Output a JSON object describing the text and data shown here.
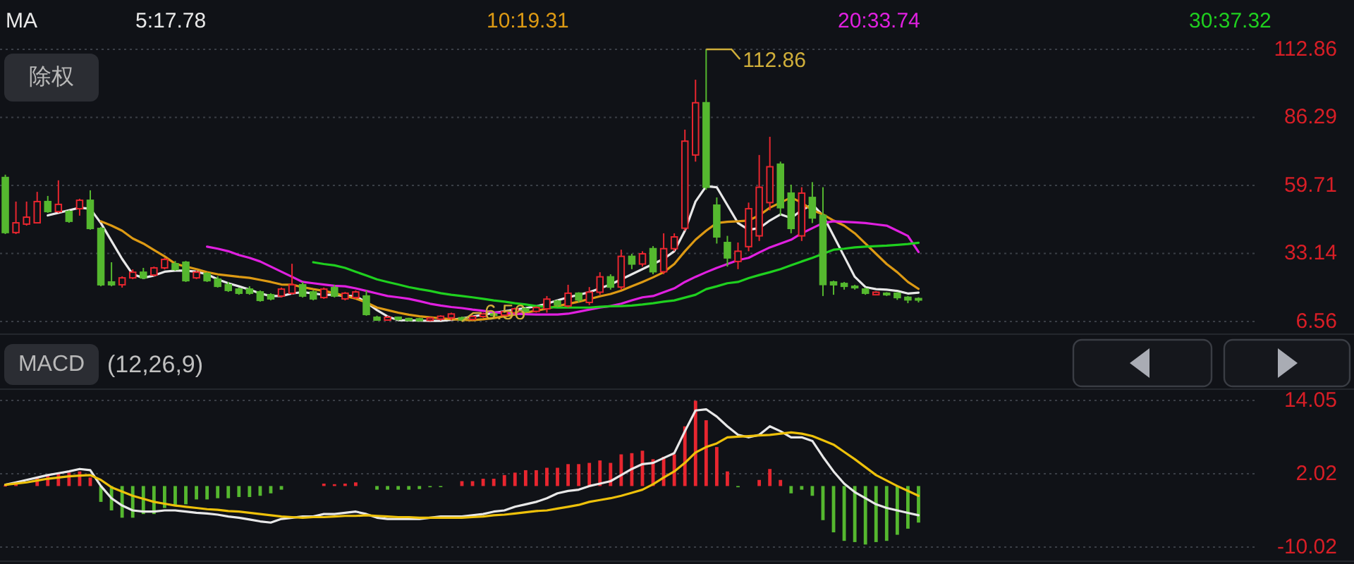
{
  "chart_data": [
    {
      "type": "candlestick",
      "legend": "top",
      "legend_title": "MA",
      "grid": "y",
      "categories": [
        null,
        null,
        null,
        null,
        null,
        null,
        null,
        null,
        null,
        null,
        null,
        null,
        null,
        null,
        null,
        null,
        null,
        null,
        null,
        null,
        null,
        null,
        null,
        null,
        null,
        null,
        null,
        null,
        null,
        null,
        null,
        null,
        null,
        null,
        null,
        null,
        null,
        null,
        null,
        null,
        null,
        null,
        null,
        null,
        null,
        null,
        null,
        null,
        null,
        null,
        null,
        null,
        null,
        null,
        null,
        null,
        null,
        null,
        null,
        null,
        null,
        null,
        null,
        null,
        null,
        null,
        null,
        null,
        null,
        null,
        null,
        null,
        null,
        null,
        null,
        null,
        null,
        null,
        null,
        null,
        null,
        null,
        null,
        null,
        null,
        null,
        null
      ],
      "ohlc": [
        [
          62.8,
          63.9,
          40.7,
          41.3
        ],
        [
          41.3,
          53.4,
          40.7,
          45.1
        ],
        [
          44.6,
          53.4,
          44,
          47.3
        ],
        [
          45.1,
          57.2,
          45.1,
          53.4
        ],
        [
          53.4,
          55.6,
          49,
          49.5
        ],
        [
          49.5,
          61.7,
          49,
          52.3
        ],
        [
          49.5,
          50,
          45.1,
          45.7
        ],
        [
          50.6,
          54.5,
          47.9,
          53.9
        ],
        [
          53.9,
          57.8,
          42.4,
          42.9
        ],
        [
          42.9,
          43.5,
          20.3,
          20.9
        ],
        [
          22,
          29.7,
          20.3,
          20.9
        ],
        [
          20.9,
          24.2,
          19.8,
          23.6
        ],
        [
          23.6,
          26.9,
          23.1,
          25.8
        ],
        [
          25.8,
          27.5,
          23.1,
          23.6
        ],
        [
          24.7,
          28,
          24.2,
          27.5
        ],
        [
          27.5,
          31.4,
          26.9,
          30.8
        ],
        [
          29.1,
          30.2,
          26.4,
          26.9
        ],
        [
          29.7,
          30.2,
          22,
          22.5
        ],
        [
          23.6,
          26.4,
          23.1,
          25.8
        ],
        [
          25.3,
          25.8,
          22,
          22.5
        ],
        [
          23.1,
          24.2,
          19.8,
          20.3
        ],
        [
          20.9,
          22,
          18.1,
          18.7
        ],
        [
          19.2,
          19.8,
          17,
          17.6
        ],
        [
          19.2,
          20.3,
          17,
          17.6
        ],
        [
          18.1,
          18.7,
          14.3,
          14.8
        ],
        [
          17,
          17.6,
          14.8,
          15.4
        ],
        [
          16.5,
          19.8,
          15.9,
          19.2
        ],
        [
          17.6,
          29.1,
          17,
          20.9
        ],
        [
          20.9,
          22,
          15.9,
          16.5
        ],
        [
          18.1,
          18.7,
          14.8,
          15.4
        ],
        [
          15.9,
          19.8,
          15.4,
          19.2
        ],
        [
          19.8,
          20.9,
          15.9,
          16.5
        ],
        [
          15.4,
          18.1,
          14.8,
          17.6
        ],
        [
          15.9,
          18.7,
          15.4,
          18.1
        ],
        [
          16.5,
          18.7,
          8.8,
          9.3
        ],
        [
          8.2,
          8.8,
          7,
          7.1
        ],
        [
          7.1,
          8.8,
          6.9,
          8.2
        ],
        [
          8.2,
          8.5,
          6.9,
          7.4
        ],
        [
          7.7,
          8,
          6.7,
          7
        ],
        [
          7.6,
          8,
          6.7,
          6.9
        ],
        [
          7,
          8.3,
          6.6,
          7.9
        ],
        [
          7.5,
          9,
          6.9,
          8.6
        ],
        [
          8,
          10,
          7,
          9.5
        ],
        [
          8,
          8.5,
          6.56,
          7.2
        ],
        [
          7.4,
          9,
          7,
          8.5
        ],
        [
          8.5,
          10,
          8,
          9.5
        ],
        [
          9.5,
          10,
          8.5,
          9
        ],
        [
          9,
          11,
          8.5,
          10.4
        ],
        [
          10,
          12,
          9.5,
          11.5
        ],
        [
          11.5,
          12,
          10,
          10.5
        ],
        [
          10.5,
          12.5,
          10,
          12
        ],
        [
          11.5,
          16.5,
          10,
          15.3
        ],
        [
          14.5,
          15,
          12,
          13
        ],
        [
          12.6,
          20.9,
          12,
          17.6
        ],
        [
          17.6,
          18,
          14,
          15
        ],
        [
          14,
          20,
          13,
          18
        ],
        [
          18,
          25.8,
          17,
          24
        ],
        [
          24,
          25,
          19,
          20
        ],
        [
          20,
          34.6,
          19,
          32
        ],
        [
          32,
          33,
          27,
          29
        ],
        [
          29,
          34,
          28,
          33
        ],
        [
          35,
          36,
          25,
          26
        ],
        [
          26,
          41,
          25,
          35
        ],
        [
          35,
          41,
          34,
          39.6
        ],
        [
          43,
          81.5,
          42,
          77
        ],
        [
          71.6,
          101,
          69,
          92
        ],
        [
          92,
          112.86,
          58,
          59
        ],
        [
          52,
          55,
          37,
          39.6
        ],
        [
          37.4,
          40,
          28,
          31.4
        ],
        [
          30,
          37.4,
          27,
          34
        ],
        [
          35.8,
          53,
          34,
          50.6
        ],
        [
          40,
          71.6,
          38,
          59
        ],
        [
          53,
          78.7,
          50,
          67
        ],
        [
          68,
          69,
          48,
          51
        ],
        [
          56.7,
          60,
          41,
          42.9
        ],
        [
          40,
          59,
          38,
          56.7
        ],
        [
          55,
          61,
          45,
          47
        ],
        [
          48,
          59,
          16.5,
          21
        ],
        [
          22,
          22.5,
          17,
          20.9
        ],
        [
          21.4,
          22,
          19,
          20.3
        ],
        [
          20.3,
          20.9,
          19,
          19.8
        ],
        [
          19.2,
          19.8,
          17,
          17.6
        ],
        [
          17,
          18.4,
          16.8,
          18
        ],
        [
          17.6,
          18,
          16.5,
          17
        ],
        [
          17.6,
          18,
          15,
          15.9
        ],
        [
          16,
          16.5,
          13.7,
          15
        ],
        [
          15.5,
          16,
          14,
          15
        ]
      ],
      "colors": [
        "#55b82f",
        "#e8262f",
        "#e8262f",
        "#e8262f",
        "#55b82f",
        "#e8262f",
        "#55b82f",
        "#e8262f",
        "#55b82f",
        "#55b82f",
        "#55b82f",
        "#e8262f",
        "#e8262f",
        "#55b82f",
        "#e8262f",
        "#e8262f",
        "#55b82f",
        "#55b82f",
        "#e8262f",
        "#55b82f",
        "#55b82f",
        "#55b82f",
        "#55b82f",
        "#55b82f",
        "#55b82f",
        "#55b82f",
        "#e8262f",
        "#e8262f",
        "#55b82f",
        "#55b82f",
        "#e8262f",
        "#55b82f",
        "#e8262f",
        "#e8262f",
        "#55b82f",
        "#55b82f",
        "#e8262f",
        "#55b82f",
        "#55b82f",
        "#55b82f",
        "#e8262f",
        "#e8262f",
        "#e8262f",
        "#55b82f",
        "#e8262f",
        "#e8262f",
        "#55b82f",
        "#e8262f",
        "#e8262f",
        "#55b82f",
        "#e8262f",
        "#e8262f",
        "#55b82f",
        "#e8262f",
        "#55b82f",
        "#e8262f",
        "#e8262f",
        "#55b82f",
        "#e8262f",
        "#55b82f",
        "#e8262f",
        "#55b82f",
        "#e8262f",
        "#e8262f",
        "#e8262f",
        "#e8262f",
        "#55b82f",
        "#55b82f",
        "#55b82f",
        "#e8262f",
        "#e8262f",
        "#e8262f",
        "#e8262f",
        "#55b82f",
        "#55b82f",
        "#e8262f",
        "#55b82f",
        "#55b82f",
        "#55b82f",
        "#55b82f",
        "#55b82f",
        "#55b82f",
        "#e8262f",
        "#55b82f",
        "#55b82f",
        "#55b82f",
        "#55b82f"
      ],
      "series": [
        {
          "name": "5:17.78",
          "type": "line",
          "color": "#e8e8e8",
          "values": [
            null,
            null,
            null,
            null,
            48,
            49,
            50,
            51,
            50.6,
            45,
            38,
            31,
            25,
            23.6,
            24.5,
            26,
            26.4,
            26.4,
            26,
            25,
            23,
            21.5,
            20.3,
            19,
            17.5,
            16.5,
            16.5,
            17.5,
            18,
            17.5,
            17,
            17,
            16.5,
            16.5,
            14,
            11,
            8.5,
            7.1,
            7,
            6.9,
            6.8,
            6.8,
            7.2,
            7.8,
            8.5,
            9.2,
            9.9,
            10.5,
            11.2,
            11.8,
            12.5,
            13.5,
            14.8,
            16,
            17,
            18,
            19.5,
            21,
            23,
            25,
            27,
            29,
            31,
            34,
            42,
            53.4,
            59.4,
            59,
            52,
            45,
            42.4,
            43,
            46,
            48.4,
            47,
            50,
            52.3,
            48,
            40,
            32,
            24,
            20,
            19.2,
            19,
            18.5,
            17.5,
            17.8
          ]
        },
        {
          "name": "10:19.31",
          "type": "line",
          "color": "#dd9a14",
          "values": [
            null,
            null,
            null,
            null,
            null,
            null,
            null,
            null,
            null,
            45.7,
            44,
            42,
            39,
            37,
            34.5,
            32,
            29.1,
            28,
            27,
            25.8,
            25,
            24.5,
            24,
            23.6,
            22.8,
            22,
            21,
            20.9,
            20,
            19.2,
            18.5,
            17.6,
            16.5,
            15.5,
            14,
            12,
            11,
            10,
            9.2,
            8.6,
            8.2,
            7.8,
            7.5,
            7.2,
            7.1,
            7.4,
            7.9,
            8.6,
            9.3,
            10,
            10.8,
            11.6,
            12.6,
            13.4,
            14.3,
            15.3,
            16.4,
            17.3,
            18.6,
            20.3,
            22,
            23.8,
            25.8,
            29,
            34,
            38.5,
            42,
            45,
            45.5,
            45.7,
            46,
            48,
            51,
            53,
            55,
            53,
            50,
            48.4,
            46,
            44,
            41,
            37,
            33,
            29,
            25.8,
            22,
            19.3
          ]
        },
        {
          "name": "20:33.74",
          "type": "line",
          "color": "#e020e0",
          "values": [
            null,
            null,
            null,
            null,
            null,
            null,
            null,
            null,
            null,
            null,
            null,
            null,
            null,
            null,
            null,
            null,
            null,
            null,
            null,
            35.8,
            35,
            34,
            32.5,
            31.4,
            30,
            28,
            26,
            24,
            22,
            21.5,
            21,
            20.5,
            20.3,
            19.5,
            18.5,
            17.5,
            16.5,
            16,
            15.4,
            14.5,
            13.5,
            12.8,
            12.2,
            11.8,
            11.2,
            10.7,
            10.2,
            9.9,
            9.6,
            9.4,
            9.3,
            9.3,
            9.3,
            9.6,
            10.4,
            11.2,
            12,
            12.6,
            13.5,
            14.8,
            16,
            16.5,
            18,
            19.5,
            22,
            24,
            25.8,
            27.5,
            29,
            30.5,
            31.4,
            33.5,
            35.5,
            37,
            38.5,
            41,
            43,
            45,
            45.7,
            45.5,
            45.3,
            45,
            44.5,
            44,
            42,
            40,
            33.7
          ]
        },
        {
          "name": "30:37.32",
          "type": "line",
          "color": "#1fd01f",
          "values": [
            null,
            null,
            null,
            null,
            null,
            null,
            null,
            null,
            null,
            null,
            null,
            null,
            null,
            null,
            null,
            null,
            null,
            null,
            null,
            null,
            null,
            null,
            null,
            null,
            null,
            null,
            null,
            null,
            null,
            29.7,
            29,
            28.5,
            27.5,
            26,
            24.5,
            23,
            22,
            21,
            20,
            19.2,
            18.5,
            17.6,
            17,
            16.5,
            16,
            15.4,
            14.8,
            14.3,
            13.7,
            13.2,
            12.6,
            12.2,
            12,
            12,
            12,
            12,
            12.3,
            12.5,
            12.6,
            12.8,
            13.2,
            13.7,
            14.3,
            14.8,
            15.9,
            17,
            19.2,
            20.3,
            21.5,
            22,
            23.5,
            24.7,
            25.8,
            27,
            28.5,
            30,
            31.4,
            33,
            34.6,
            35,
            35.5,
            35.8,
            36,
            36.2,
            36.5,
            36.8,
            37.3
          ]
        }
      ],
      "ylim": [
        6.56,
        112.86
      ],
      "yticks": [
        112.86,
        86.29,
        59.71,
        33.14,
        6.56
      ],
      "annotations": [
        "除权",
        "112.86",
        "6.56"
      ]
    },
    {
      "type": "bar",
      "title": "MACD",
      "subtitle": "(12,26,9)",
      "grid": "y",
      "categories": [
        null,
        null,
        null,
        null,
        null,
        null,
        null,
        null,
        null,
        null,
        null,
        null,
        null,
        null,
        null,
        null,
        null,
        null,
        null,
        null,
        null,
        null,
        null,
        null,
        null,
        null,
        null,
        null,
        null,
        null,
        null,
        null,
        null,
        null,
        null,
        null,
        null,
        null,
        null,
        null,
        null,
        null,
        null,
        null,
        null,
        null,
        null,
        null,
        null,
        null,
        null,
        null,
        null,
        null,
        null,
        null,
        null,
        null,
        null,
        null,
        null,
        null,
        null,
        null,
        null,
        null,
        null,
        null,
        null,
        null,
        null,
        null,
        null,
        null,
        null,
        null,
        null,
        null,
        null,
        null,
        null,
        null,
        null,
        null,
        null,
        null,
        null
      ],
      "series": [
        {
          "type": "bar",
          "values": [
            0.1,
            0.3,
            null,
            1.4,
            1.8,
            2.0,
            2.2,
            2.4,
            1.4,
            -2.6,
            -4,
            -5.2,
            -5.2,
            -4.6,
            -4.6,
            -3.6,
            -3.2,
            -3,
            -2.2,
            -2.2,
            -2,
            -2,
            -1.8,
            -1.8,
            -1.6,
            -1.2,
            -0.6,
            null,
            null,
            null,
            0.4,
            0.3,
            0.4,
            0.6,
            null,
            -0.6,
            -0.6,
            -0.6,
            -0.6,
            -0.5,
            -0.2,
            -0.1,
            null,
            0.8,
            0.8,
            1.2,
            1.2,
            1.8,
            2.2,
            2.6,
            2.6,
            3.0,
            3.0,
            3.6,
            3.6,
            3.8,
            4.2,
            3.8,
            5.2,
            5.4,
            5.8,
            4.4,
            4.8,
            5.2,
            9.8,
            14,
            10.8,
            6.4,
            2.4,
            -0.2,
            null,
            1.0,
            2.8,
            1.0,
            -1.2,
            -0.6,
            -1.6,
            -5.6,
            -7.6,
            -9,
            -9.2,
            -9.6,
            -9.2,
            -9,
            -8,
            -7,
            -6
          ],
          "colors": [
            "#e8262f",
            "#e8262f",
            null,
            "#e8262f",
            "#e8262f",
            "#e8262f",
            "#e8262f",
            "#e8262f",
            "#e8262f",
            "#55b82f",
            "#55b82f",
            "#55b82f",
            "#55b82f",
            "#55b82f",
            "#55b82f",
            "#55b82f",
            "#55b82f",
            "#55b82f",
            "#55b82f",
            "#55b82f",
            "#55b82f",
            "#55b82f",
            "#55b82f",
            "#55b82f",
            "#55b82f",
            "#55b82f",
            "#55b82f",
            null,
            null,
            null,
            "#e8262f",
            "#e8262f",
            "#e8262f",
            "#e8262f",
            null,
            "#55b82f",
            "#55b82f",
            "#55b82f",
            "#55b82f",
            "#55b82f",
            "#55b82f",
            "#55b82f",
            null,
            "#e8262f",
            "#e8262f",
            "#e8262f",
            "#e8262f",
            "#e8262f",
            "#e8262f",
            "#e8262f",
            "#e8262f",
            "#e8262f",
            "#e8262f",
            "#e8262f",
            "#e8262f",
            "#e8262f",
            "#e8262f",
            "#e8262f",
            "#e8262f",
            "#e8262f",
            "#e8262f",
            "#e8262f",
            "#e8262f",
            "#e8262f",
            "#e8262f",
            "#e8262f",
            "#e8262f",
            "#e8262f",
            "#e8262f",
            "#55b82f",
            null,
            "#e8262f",
            "#e8262f",
            "#e8262f",
            "#55b82f",
            "#55b82f",
            "#55b82f",
            "#55b82f",
            "#55b82f",
            "#55b82f",
            "#55b82f",
            "#55b82f",
            "#55b82f",
            "#55b82f",
            "#55b82f",
            "#55b82f",
            "#55b82f"
          ]
        },
        {
          "type": "line",
          "color": "#e8e8e8",
          "values": [
            0.2,
            0.6,
            1.0,
            1.4,
            1.8,
            2.1,
            2.4,
            2.8,
            2.6,
            0,
            -2,
            -3.2,
            -4,
            -4.2,
            -4.2,
            -4,
            -4,
            -4.2,
            -4.4,
            -4.5,
            -4.7,
            -5,
            -5.2,
            -5.5,
            -5.8,
            -6,
            -5.4,
            -5.2,
            -5,
            -5,
            -4.6,
            -4.6,
            -4.4,
            -4.2,
            -4.6,
            -5.2,
            -5.4,
            -5.4,
            -5.4,
            -5.4,
            -5.2,
            -5,
            -5,
            -5,
            -4.8,
            -4.6,
            -4.2,
            -4,
            -3.4,
            -3,
            -2.6,
            -2,
            -1.2,
            -0.8,
            -0.6,
            0,
            0.4,
            0.8,
            1.8,
            2.8,
            3.6,
            3.8,
            4.6,
            5.4,
            9,
            12.4,
            12.6,
            11.4,
            9.8,
            8.4,
            8,
            8.4,
            9.8,
            9,
            8,
            8,
            7.4,
            4.8,
            2.4,
            0.4,
            -1,
            -2,
            -3,
            -3.6,
            -4,
            -4.4,
            -4.8
          ]
        },
        {
          "type": "line",
          "color": "#eec10a",
          "values": [
            0.2,
            0.4,
            0.6,
            0.9,
            1.2,
            1.4,
            1.6,
            1.7,
            1.8,
            1.0,
            -0.2,
            -0.9,
            -1.6,
            -2.1,
            -2.6,
            -2.9,
            -3.2,
            -3.4,
            -3.6,
            -3.8,
            -3.9,
            -4.1,
            -4.2,
            -4.4,
            -4.6,
            -4.8,
            -5,
            -5.1,
            -5.2,
            -5.1,
            -5.1,
            -5,
            -4.9,
            -4.9,
            -4.8,
            -4.9,
            -5,
            -5.1,
            -5.1,
            -5.2,
            -5.2,
            -5.2,
            -5.2,
            -5.2,
            -5.1,
            -5,
            -4.8,
            -4.7,
            -4.5,
            -4.3,
            -4.1,
            -4,
            -3.7,
            -3.4,
            -3.1,
            -2.6,
            -2.3,
            -2,
            -1.6,
            -1.1,
            -0.6,
            0.3,
            1.4,
            2.4,
            3.8,
            5.5,
            6.4,
            7,
            8,
            8.1,
            8.2,
            8.3,
            8.4,
            8.6,
            8.8,
            8.6,
            8.2,
            7.5,
            6.8,
            5.6,
            4.4,
            3.1,
            1.8,
            0.9,
            0,
            -0.8,
            -1.6
          ]
        }
      ],
      "ylim": [
        -10.02,
        14.05
      ],
      "yticks": [
        14.05,
        2.02,
        -10.02
      ]
    }
  ]
}
